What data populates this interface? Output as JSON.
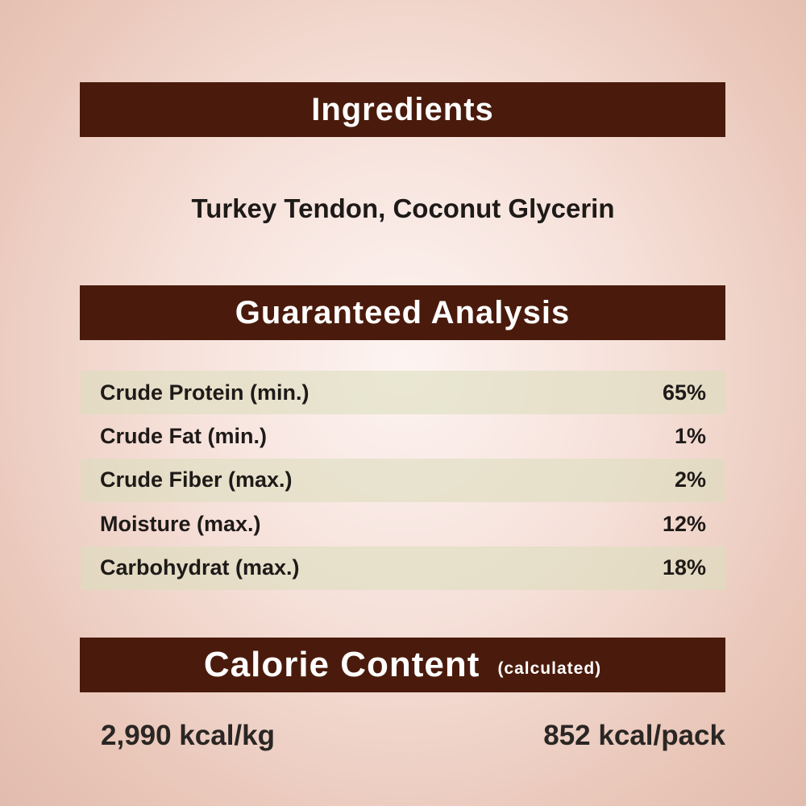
{
  "ingredients": {
    "heading": "Ingredients",
    "text": "Turkey Tendon, Coconut Glycerin"
  },
  "analysis": {
    "heading": "Guaranteed Analysis",
    "rows": [
      {
        "label": "Crude Protein (min.)",
        "value": "65%"
      },
      {
        "label": "Crude Fat (min.)",
        "value": "1%"
      },
      {
        "label": "Crude Fiber (max.)",
        "value": "2%"
      },
      {
        "label": "Moisture (max.)",
        "value": "12%"
      },
      {
        "label": "Carbohydrat (max.)",
        "value": "18%"
      }
    ]
  },
  "calorie": {
    "heading": "Calorie Content",
    "note": "(calculated)",
    "per_kg": "2,990 kcal/kg",
    "per_pack": "852 kcal/pack"
  },
  "colors": {
    "banner": "#4a1b0c",
    "row_highlight": "#dcdebe"
  }
}
